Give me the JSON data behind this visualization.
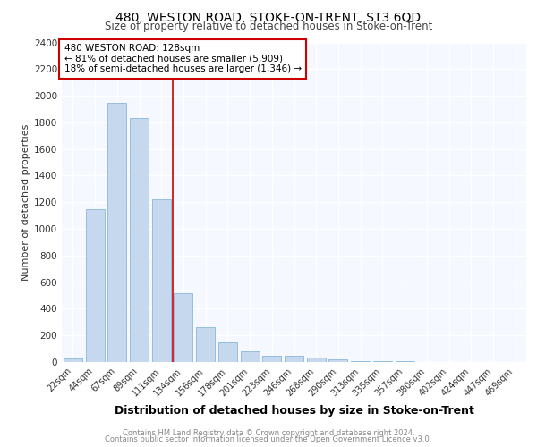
{
  "title1": "480, WESTON ROAD, STOKE-ON-TRENT, ST3 6QD",
  "title2": "Size of property relative to detached houses in Stoke-on-Trent",
  "xlabel": "Distribution of detached houses by size in Stoke-on-Trent",
  "ylabel": "Number of detached properties",
  "footnote1": "Contains HM Land Registry data © Crown copyright and database right 2024.",
  "footnote2": "Contains public sector information licensed under the Open Government Licence v3.0.",
  "annotation_line1": "480 WESTON ROAD: 128sqm",
  "annotation_line2": "← 81% of detached houses are smaller (5,909)",
  "annotation_line3": "18% of semi-detached houses are larger (1,346) →",
  "categories": [
    "22sqm",
    "44sqm",
    "67sqm",
    "89sqm",
    "111sqm",
    "134sqm",
    "156sqm",
    "178sqm",
    "201sqm",
    "223sqm",
    "246sqm",
    "268sqm",
    "290sqm",
    "313sqm",
    "335sqm",
    "357sqm",
    "380sqm",
    "402sqm",
    "424sqm",
    "447sqm",
    "469sqm"
  ],
  "values": [
    30,
    1150,
    1950,
    1830,
    1220,
    520,
    265,
    145,
    80,
    50,
    45,
    35,
    20,
    10,
    5,
    4,
    3,
    2,
    2,
    2,
    2
  ],
  "bar_color": "#c5d8ee",
  "bar_edge_color": "#7aadd4",
  "red_line_category_idx": 5,
  "annotation_box_color": "#ffffff",
  "annotation_box_edge": "#cc0000",
  "plot_bg_color": "#f5f8ff",
  "grid_color": "#ffffff",
  "ylim": [
    0,
    2400
  ],
  "yticks": [
    0,
    200,
    400,
    600,
    800,
    1000,
    1200,
    1400,
    1600,
    1800,
    2000,
    2200,
    2400
  ]
}
